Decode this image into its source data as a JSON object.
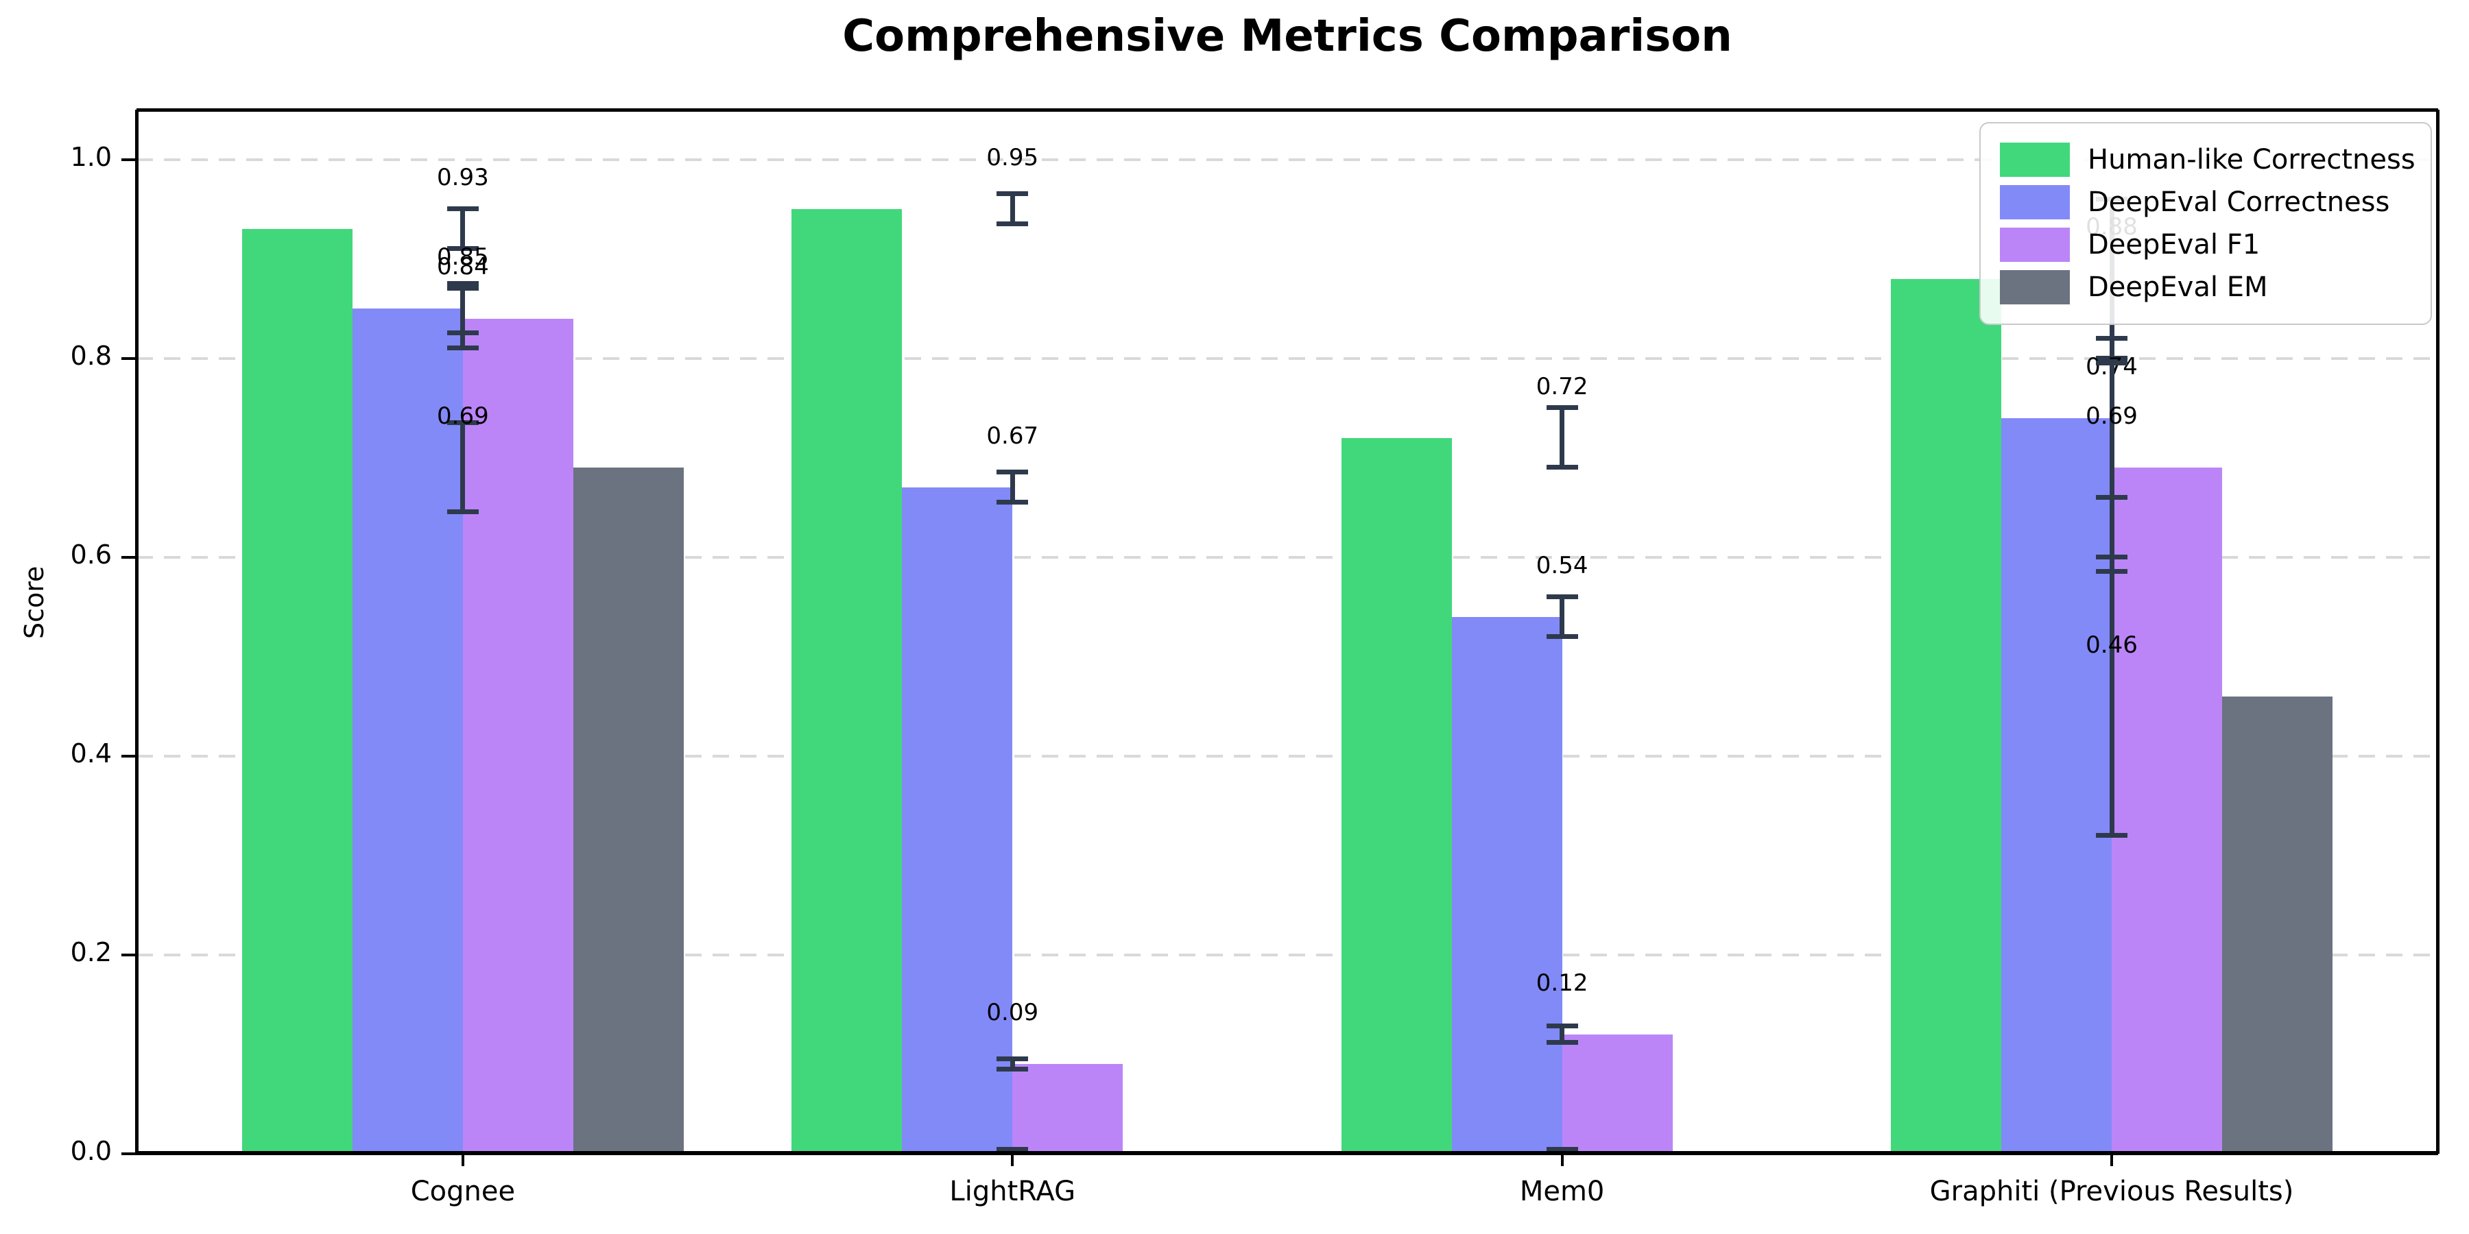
{
  "chart_data": {
    "type": "bar",
    "title": "Comprehensive Metrics Comparison",
    "xlabel": "",
    "ylabel": "Score",
    "categories": [
      "Cognee",
      "LightRAG",
      "Mem0",
      "Graphiti (Previous Results)"
    ],
    "series": [
      {
        "name": "Human-like Correctness",
        "color": "#41d87c",
        "values": [
          0.93,
          0.95,
          0.72,
          0.88
        ],
        "errors": [
          0.02,
          0.015,
          0.03,
          0.08
        ],
        "labels": [
          "0.93",
          "0.95",
          "0.72",
          "0.88"
        ]
      },
      {
        "name": "DeepEval Correctness",
        "color": "#828af8",
        "values": [
          0.85,
          0.67,
          0.54,
          0.74
        ],
        "errors": [
          0.025,
          0.015,
          0.02,
          0.08
        ],
        "labels": [
          "0.85",
          "0.67",
          "0.54",
          "0.74"
        ]
      },
      {
        "name": "DeepEval F1",
        "color": "#bb85f8",
        "values": [
          0.84,
          0.09,
          0.12,
          0.69
        ],
        "errors": [
          0.03,
          0.005,
          0.008,
          0.105
        ],
        "labels": [
          "0.84",
          "0.09",
          "0.12",
          "0.69"
        ]
      },
      {
        "name": "DeepEval EM",
        "color": "#6b7280",
        "values": [
          0.69,
          0.0,
          0.0,
          0.46
        ],
        "errors": [
          0.045,
          0.004,
          0.004,
          0.14
        ],
        "labels": [
          "0.69",
          null,
          null,
          "0.46"
        ]
      }
    ],
    "ylim": [
      0,
      1.05
    ],
    "yticks": [
      "0.0",
      "0.2",
      "0.4",
      "0.6",
      "0.8",
      "1.0"
    ],
    "grid": "horizontal-dashed",
    "gridcolor": "#d9d9d9",
    "errorbar_color": "#2e3a4c",
    "legend_position": "upper-right"
  }
}
